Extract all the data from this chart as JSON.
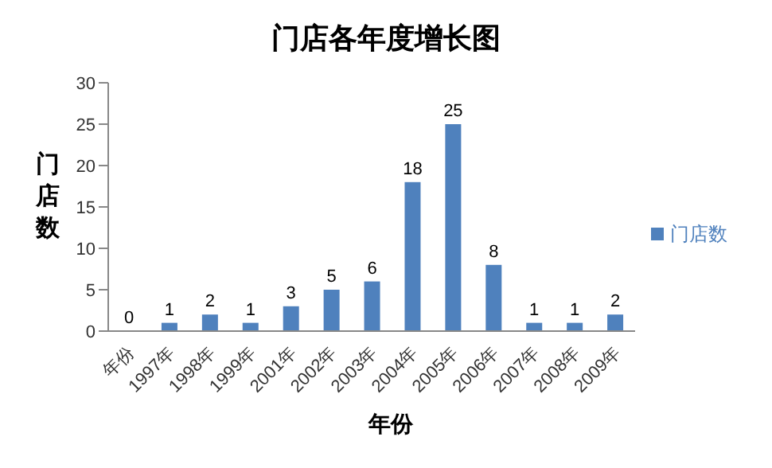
{
  "chart_data": {
    "type": "bar",
    "title": "门店各年度增长图",
    "xlabel": "年份",
    "ylabel": "门店数",
    "categories": [
      "年份",
      "1997年",
      "1998年",
      "1999年",
      "2001年",
      "2002年",
      "2003年",
      "2004年",
      "2005年",
      "2006年",
      "2007年",
      "2008年",
      "2009年"
    ],
    "series": [
      {
        "name": "门店数",
        "color": "#4f81bd",
        "values": [
          0,
          1,
          2,
          1,
          3,
          5,
          6,
          18,
          25,
          8,
          1,
          1,
          2
        ]
      }
    ],
    "ylim": [
      0,
      30
    ],
    "yticks": [
      0,
      5,
      10,
      15,
      20,
      25,
      30
    ],
    "grid": false,
    "legend": "right",
    "data_labels": true
  }
}
